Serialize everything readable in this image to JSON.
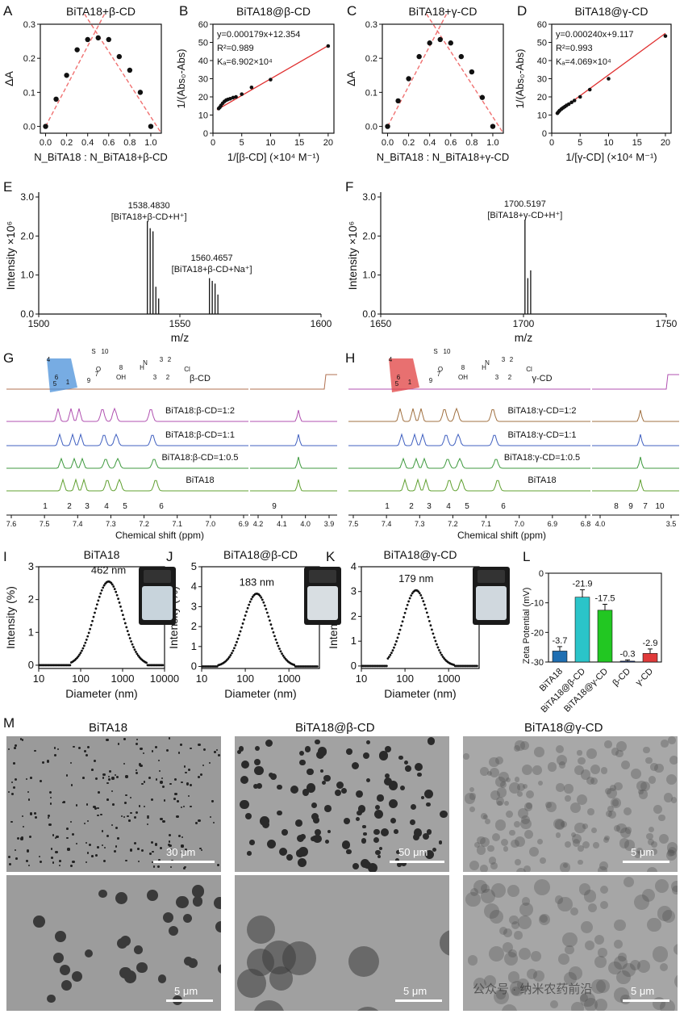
{
  "panel_letters": [
    "A",
    "B",
    "C",
    "D",
    "E",
    "F",
    "G",
    "H",
    "I",
    "J",
    "K",
    "L",
    "M"
  ],
  "chart_data": [
    {
      "id": "A",
      "type": "scatter",
      "title": "BiTA18+β-CD",
      "xlabel": "N_BiTA18 : N_BiTA18+β-CD",
      "ylabel": "ΔA",
      "xlim": [
        -0.05,
        1.1
      ],
      "ylim": [
        -0.02,
        0.3
      ],
      "xticks": [
        "0.0",
        "0.2",
        "0.4",
        "0.6",
        "0.8",
        "1.0"
      ],
      "yticks": [
        "0.0",
        "0.1",
        "0.2",
        "0.3"
      ],
      "x": [
        0.0,
        0.1,
        0.2,
        0.3,
        0.4,
        0.5,
        0.6,
        0.7,
        0.8,
        0.9,
        1.0
      ],
      "y": [
        0.0,
        0.08,
        0.15,
        0.225,
        0.255,
        0.26,
        0.255,
        0.205,
        0.165,
        0.1,
        0.0
      ],
      "fit_lines": [
        [
          [
            0.0,
            0.0
          ],
          [
            0.56,
            0.33
          ]
        ],
        [
          [
            0.37,
            0.33
          ],
          [
            1.1,
            -0.02
          ]
        ]
      ],
      "grid": false
    },
    {
      "id": "B",
      "type": "scatter",
      "title": "BiTA18@β-CD",
      "xlabel": "1/[β-CD] (×10⁴ M⁻¹)",
      "ylabel": "1/(Abs₀-Abs)",
      "xlim": [
        0,
        21
      ],
      "ylim": [
        0,
        60
      ],
      "xticks": [
        "0",
        "5",
        "10",
        "15",
        "20"
      ],
      "yticks": [
        "0",
        "10",
        "20",
        "30",
        "40",
        "50",
        "60"
      ],
      "x": [
        1.0,
        1.2,
        1.4,
        1.7,
        2.0,
        2.3,
        2.6,
        3.0,
        3.5,
        4.0,
        5.0,
        6.7,
        10.0,
        20.0
      ],
      "y": [
        13.6,
        14.3,
        15.3,
        16.5,
        17.5,
        18.2,
        18.6,
        19.0,
        19.6,
        20.0,
        21.5,
        25.2,
        29.5,
        48.0
      ],
      "fit": [
        [
          0.7,
          12.9
        ],
        [
          20.0,
          48.2
        ]
      ],
      "annotations": [
        "y=0.000179x+12.354",
        "R²=0.989",
        "Kₐ=6.902×10⁴"
      ],
      "grid": false
    },
    {
      "id": "C",
      "type": "scatter",
      "title": "BiTA18+γ-CD",
      "xlabel": "N_BiTA18 : N_BiTA18+γ-CD",
      "ylabel": "ΔA",
      "xlim": [
        -0.05,
        1.1
      ],
      "ylim": [
        -0.02,
        0.3
      ],
      "xticks": [
        "0.0",
        "0.2",
        "0.4",
        "0.6",
        "0.8",
        "1.0"
      ],
      "yticks": [
        "0.0",
        "0.1",
        "0.2",
        "0.3"
      ],
      "x": [
        0.0,
        0.1,
        0.2,
        0.3,
        0.4,
        0.5,
        0.6,
        0.7,
        0.8,
        0.9,
        1.0
      ],
      "y": [
        0.0,
        0.075,
        0.14,
        0.205,
        0.245,
        0.255,
        0.245,
        0.205,
        0.16,
        0.085,
        0.0
      ],
      "fit_lines": [
        [
          [
            0.0,
            0.0
          ],
          [
            0.56,
            0.33
          ]
        ],
        [
          [
            0.37,
            0.33
          ],
          [
            1.1,
            -0.02
          ]
        ]
      ],
      "grid": false
    },
    {
      "id": "D",
      "type": "scatter",
      "title": "BiTA18@γ-CD",
      "xlabel": "1/[γ-CD] (×10⁴ M⁻¹)",
      "ylabel": "1/(Abs₀-Abs)",
      "xlim": [
        0,
        21
      ],
      "ylim": [
        0,
        60
      ],
      "xticks": [
        "0",
        "5",
        "10",
        "15",
        "20"
      ],
      "yticks": [
        "0",
        "10",
        "20",
        "30",
        "40",
        "50",
        "60"
      ],
      "x": [
        1.0,
        1.2,
        1.4,
        1.7,
        2.0,
        2.3,
        2.6,
        3.0,
        3.5,
        4.0,
        5.0,
        6.7,
        10.0,
        20.0
      ],
      "y": [
        11.0,
        11.8,
        12.5,
        13.3,
        14.0,
        14.6,
        15.3,
        16.0,
        17.0,
        18.0,
        20.0,
        24.0,
        30.0,
        53.5
      ],
      "fit": [
        [
          0.7,
          10.8
        ],
        [
          20.0,
          55.0
        ]
      ],
      "annotations": [
        "y=0.000240x+9.117",
        "R²=0.993",
        "Kₐ=4.069×10⁴"
      ],
      "grid": false
    },
    {
      "id": "E",
      "type": "bar",
      "xlabel": "m/z",
      "ylabel": "Intensity ×10⁶",
      "xlim": [
        1500,
        1600
      ],
      "ylim": [
        0,
        3.0
      ],
      "xticks": [
        "1500",
        "1550",
        "1600"
      ],
      "yticks": [
        "0.0",
        "1.0",
        "2.0",
        "3.0"
      ],
      "x": [
        1538.48,
        1539.48,
        1540.48,
        1541.49,
        1542.49,
        1560.47,
        1561.47,
        1562.47,
        1563.47
      ],
      "y": [
        2.38,
        2.2,
        2.12,
        0.7,
        0.4,
        0.92,
        0.85,
        0.78,
        0.5
      ],
      "annotations": [
        "1538.4830",
        "[BiTA18+β-CD+H⁺]",
        "1560.4657",
        "[BiTA18+β-CD+Na⁺]"
      ],
      "grid": false
    },
    {
      "id": "F",
      "type": "bar",
      "xlabel": "m/z",
      "ylabel": "Intensity ×10⁶",
      "xlim": [
        1650,
        1750
      ],
      "ylim": [
        0,
        3.0
      ],
      "xticks": [
        "1650",
        "1700",
        "1750"
      ],
      "yticks": [
        "0.0",
        "1.0",
        "2.0",
        "3.0"
      ],
      "x": [
        1700.52,
        1701.52,
        1702.52
      ],
      "y": [
        2.42,
        0.92,
        1.12
      ],
      "annotations": [
        "1700.5197",
        "[BiTA18+γ-CD+H⁺]"
      ],
      "grid": false
    },
    {
      "id": "I",
      "type": "scatter",
      "title": "BiTA18",
      "xlabel": "Diameter (nm)",
      "ylabel": "Intensity (%)",
      "xscale": "log",
      "xlim": [
        10,
        10000
      ],
      "ylim": [
        -0.1,
        3.0
      ],
      "xticks": [
        "10",
        "100",
        "1000",
        "10000"
      ],
      "yticks": [
        "0",
        "1",
        "2",
        "3"
      ],
      "peak_label": "462 nm",
      "peak": 462,
      "peak_height": 2.55,
      "log_sigma": 0.34,
      "range": [
        58,
        3700
      ],
      "grid": false
    },
    {
      "id": "J",
      "type": "scatter",
      "title": "BiTA18@β-CD",
      "xlabel": "Diameter (nm)",
      "ylabel": "Intensity (%)",
      "xscale": "log",
      "xlim": [
        10,
        5000
      ],
      "ylim": [
        -0.1,
        5.0
      ],
      "xticks": [
        "10",
        "100",
        "1000"
      ],
      "yticks": [
        "0",
        "1",
        "2",
        "3",
        "4",
        "5"
      ],
      "peak_label": "183 nm",
      "peak": 183,
      "peak_height": 3.65,
      "log_sigma": 0.31,
      "range": [
        24,
        1350
      ],
      "grid": false
    },
    {
      "id": "K",
      "type": "scatter",
      "title": "BiTA18@γ-CD",
      "xlabel": "Diameter (nm)",
      "ylabel": "Intensity (%)",
      "xscale": "log",
      "xlim": [
        10,
        5000
      ],
      "ylim": [
        -0.1,
        4.0
      ],
      "xticks": [
        "10",
        "100",
        "1000"
      ],
      "yticks": [
        "0",
        "1",
        "2",
        "3",
        "4"
      ],
      "peak_label": "179 nm",
      "peak": 179,
      "peak_height": 3.05,
      "log_sigma": 0.3,
      "range": [
        40,
        1400
      ],
      "grid": false
    },
    {
      "id": "L",
      "type": "bar",
      "ylabel": "Zeta Potential (mV)",
      "ylim": [
        -30,
        0
      ],
      "yticks": [
        "-30",
        "-20",
        "-10",
        "0"
      ],
      "categories": [
        "BiTA18",
        "BiTA18@β-CD",
        "BiTA18@γ-CD",
        "β-CD",
        "γ-CD"
      ],
      "values": [
        -3.7,
        -21.9,
        -17.5,
        -0.3,
        -2.9
      ],
      "errors": [
        1.5,
        2.5,
        2.0,
        0.4,
        1.5
      ],
      "value_labels": [
        "-3.7",
        "-21.9",
        "-17.5",
        "-0.3",
        "-2.9"
      ],
      "colors": [
        "#1f6fb2",
        "#2bc4c9",
        "#22c722",
        "#1a3a8a",
        "#e03a3a"
      ],
      "grid": false
    }
  ],
  "nmr": {
    "G": {
      "xlabel": "Chemical shift (ppm)",
      "ticks_main": [
        "7.6",
        "7.5",
        "7.4",
        "7.3",
        "7.2",
        "7.1",
        "7.0",
        "6.9"
      ],
      "ticks_right": [
        "4.2",
        "4.1",
        "4.0",
        "3.9"
      ],
      "trace_labels": [
        "β-CD",
        "BiTA18:β-CD=1:2",
        "BiTA18:β-CD=1:1",
        "BiTA18:β-CD=1:0.5",
        "BiTA18"
      ],
      "trace_colors": [
        "#b07050",
        "#b050b0",
        "#4060c0",
        "#3f9a3f",
        "#60a030"
      ],
      "peak_numbers": [
        "1",
        "2",
        "3",
        "4",
        "5",
        "6",
        "9"
      ],
      "struct_labels": [
        "4",
        "6",
        "5",
        "1",
        "9",
        "7",
        "8",
        "10",
        "OH",
        "H",
        "N",
        "S",
        "3",
        "3",
        "2",
        "2",
        "Cl",
        "O"
      ]
    },
    "H": {
      "xlabel": "Chemical shift (ppm)",
      "ticks_main": [
        "7.5",
        "7.4",
        "7.3",
        "7.2",
        "7.1",
        "7.0",
        "6.9",
        "6.8"
      ],
      "ticks_right": [
        "4.0",
        "3.5"
      ],
      "trace_labels": [
        "γ-CD",
        "BiTA18:γ-CD=1:2",
        "BiTA18:γ-CD=1:1",
        "BiTA18:γ-CD=1:0.5",
        "BiTA18"
      ],
      "trace_colors": [
        "#b050b0",
        "#a07040",
        "#4060c0",
        "#3f9a3f",
        "#60a030"
      ],
      "peak_numbers": [
        "1",
        "2",
        "3",
        "4",
        "5",
        "6",
        "8",
        "9",
        "7",
        "10"
      ],
      "struct_labels": [
        "4",
        "6",
        "5",
        "1",
        "9",
        "7",
        "8",
        "10",
        "OH",
        "H",
        "N",
        "S",
        "3",
        "3",
        "2",
        "2",
        "Cl",
        "O"
      ]
    }
  },
  "sem": {
    "titles": [
      "BiTA18",
      "BiTA18@β-CD",
      "BiTA18@γ-CD"
    ],
    "scalebars": [
      "30 μm",
      "50 μm",
      "5 μm",
      "5 μm",
      "5 μm",
      "5 μm"
    ]
  },
  "watermark": "公众号 · 纳米农药前沿",
  "colors": {
    "fit_line": "#e03030",
    "dashed_fit": "#f07070",
    "points": "#111111"
  }
}
